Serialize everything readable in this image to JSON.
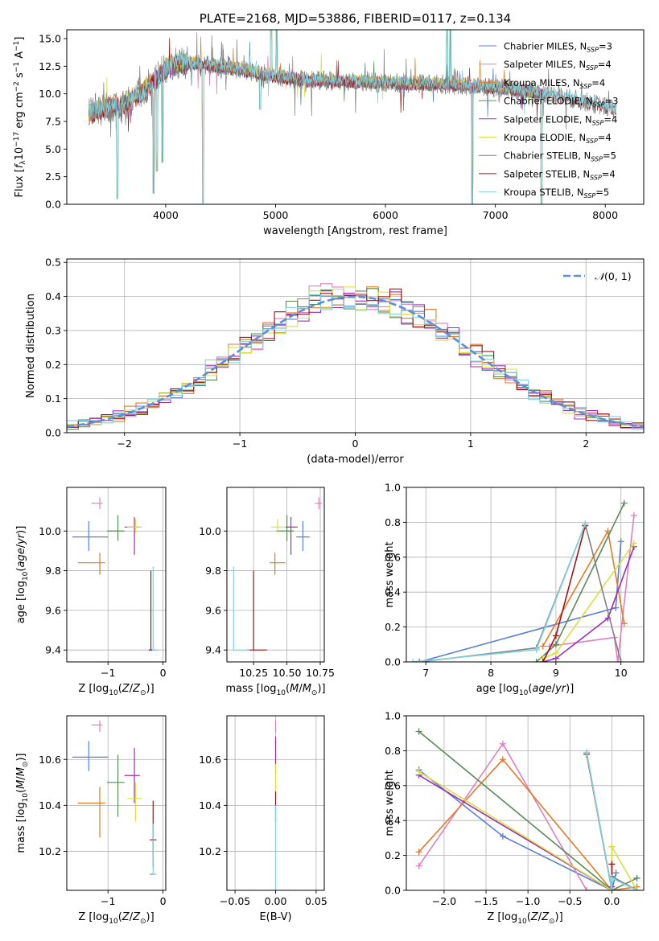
{
  "colors": {
    "chabrier_miles": "#5b7fd6",
    "salpeter_miles": "#e07fbf",
    "kroupa_miles": "#e07b29",
    "chabrier_elodie": "#5a8a5a",
    "salpeter_elodie": "#9b2fb0",
    "kroupa_elodie": "#d8e040",
    "chabrier_stelib": "#808080",
    "salpeter_stelib": "#a01515",
    "kroupa_stelib": "#7fd3dd",
    "normal": "#5b8fd6"
  },
  "chart_data": [
    {
      "id": "spectrum",
      "type": "line",
      "title": "PLATE=2168, MJD=53886, FIBERID=0117, z=0.134",
      "xlabel": "wavelength [Angstrom, rest frame]",
      "ylabel": "Flux [fλ10⁻¹⁷ erg cm⁻² s⁻¹ A⁻¹]",
      "xlim": [
        3100,
        8350
      ],
      "ylim": [
        0,
        15.8
      ],
      "xticks": [
        4000,
        5000,
        6000,
        7000,
        8000
      ],
      "yticks": [
        0.0,
        2.5,
        5.0,
        7.5,
        10.0,
        12.5,
        15.0
      ],
      "grid": false,
      "legend_position": "right",
      "series": [
        {
          "name": "Chabrier MILES, N_SSP=3",
          "key": "chabrier_miles"
        },
        {
          "name": "Salpeter MILES, N_SSP=4",
          "key": "salpeter_miles"
        },
        {
          "name": "Kroupa MILES, N_SSP=4",
          "key": "kroupa_miles"
        },
        {
          "name": "Chabrier ELODIE, N_SSP=3",
          "key": "chabrier_elodie"
        },
        {
          "name": "Salpeter ELODIE, N_SSP=4",
          "key": "salpeter_elodie"
        },
        {
          "name": "Kroupa ELODIE, N_SSP=4",
          "key": "kroupa_elodie"
        },
        {
          "name": "Chabrier STELIB, N_SSP=5",
          "key": "chabrier_stelib"
        },
        {
          "name": "Salpeter STELIB, N_SSP=4",
          "key": "salpeter_stelib"
        },
        {
          "name": "Kroupa STELIB, N_SSP=5",
          "key": "kroupa_stelib"
        }
      ],
      "legend_labels": [
        [
          "Chabrier MILES, N",
          "SSP",
          "=3"
        ],
        [
          "Salpeter MILES, N",
          "SSP",
          "=4"
        ],
        [
          "Kroupa MILES, N",
          "SSP",
          "=4"
        ],
        [
          "Chabrier ELODIE, N",
          "SSP",
          "=3"
        ],
        [
          "Salpeter ELODIE, N",
          "SSP",
          "=4"
        ],
        [
          "Kroupa ELODIE, N",
          "SSP",
          "=4"
        ],
        [
          "Chabrier STELIB, N",
          "SSP",
          "=5"
        ],
        [
          "Salpeter STELIB, N",
          "SSP",
          "=4"
        ],
        [
          "Kroupa STELIB, N",
          "SSP",
          "=5"
        ]
      ],
      "continuum": [
        [
          3300,
          8.2
        ],
        [
          3400,
          8.6
        ],
        [
          3500,
          8.9
        ],
        [
          3600,
          9.0
        ],
        [
          3700,
          9.6
        ],
        [
          3800,
          10.3
        ],
        [
          3900,
          11.2
        ],
        [
          4000,
          12.3
        ],
        [
          4100,
          12.7
        ],
        [
          4200,
          12.8
        ],
        [
          4400,
          12.6
        ],
        [
          4600,
          12.3
        ],
        [
          4800,
          12.0
        ],
        [
          5000,
          11.6
        ],
        [
          5300,
          11.2
        ],
        [
          5600,
          11.2
        ],
        [
          6000,
          11.0
        ],
        [
          6500,
          10.9
        ],
        [
          7000,
          10.6
        ],
        [
          7500,
          10.0
        ],
        [
          7900,
          9.1
        ],
        [
          8100,
          8.6
        ]
      ],
      "absorption_features": [
        [
          3560,
          0.5
        ],
        [
          3890,
          1.0
        ],
        [
          3920,
          3.0
        ],
        [
          3970,
          3.8
        ],
        [
          4340,
          0.1
        ],
        [
          4860,
          8.6
        ],
        [
          6790,
          0.0
        ],
        [
          7420,
          0.0
        ]
      ],
      "emission_features": [
        [
          4960,
          15.8
        ],
        [
          5010,
          15.8
        ],
        [
          6560,
          15.8
        ],
        [
          6590,
          15.8
        ]
      ]
    },
    {
      "id": "residuals",
      "type": "histogram",
      "xlabel": "(data-model)/error",
      "ylabel": "Normed distribution",
      "xlim": [
        -2.5,
        2.5
      ],
      "ylim": [
        0,
        0.51
      ],
      "xticks": [
        -2,
        -1,
        0,
        1,
        2
      ],
      "xtick_labels": [
        "−2",
        "−1",
        "0",
        "1",
        "2"
      ],
      "yticks": [
        0.0,
        0.1,
        0.2,
        0.3,
        0.4,
        0.5
      ],
      "grid": true,
      "legend_position": "top-right",
      "legend": "𝒩(0, 1)",
      "bin_width": 0.1
    },
    {
      "id": "age_vs_Z",
      "type": "errorbar",
      "xlabel": "Z [log₁₀(Z/Z⊙)]",
      "ylabel": "age  [log₁₀(age/yr)]",
      "xlim": [
        -1.75,
        0.05
      ],
      "ylim": [
        9.34,
        10.22
      ],
      "xticks": [
        -1,
        0
      ],
      "xtick_labels": [
        "−1",
        "0"
      ],
      "yticks": [
        9.4,
        9.6,
        9.8,
        10.0
      ],
      "points": [
        {
          "key": "chabrier_miles",
          "x": -1.35,
          "xerr": [
            0.3,
            0.35
          ],
          "y": 9.97,
          "yerr": [
            0.07,
            0.08
          ]
        },
        {
          "key": "salpeter_miles",
          "x": -1.15,
          "xerr": [
            0.15,
            0.05
          ],
          "y": 10.14,
          "yerr": [
            0.03,
            0.03
          ]
        },
        {
          "key": "kroupa_miles",
          "x": -1.15,
          "xerr": [
            0.4,
            0.1
          ],
          "y": 9.84,
          "yerr": [
            0.06,
            0.05
          ]
        },
        {
          "key": "chabrier_elodie",
          "x": -0.82,
          "xerr": [
            0.2,
            0.12
          ],
          "y": 10.0,
          "yerr": [
            0.05,
            0.08
          ]
        },
        {
          "key": "salpeter_elodie",
          "x": -0.52,
          "xerr": [
            0.18,
            0.1
          ],
          "y": 10.02,
          "yerr": [
            0.14,
            0.05
          ]
        },
        {
          "key": "kroupa_elodie",
          "x": -0.5,
          "xerr": [
            0.15,
            0.12
          ],
          "y": 10.02,
          "yerr": [
            0.03,
            0.04
          ]
        },
        {
          "key": "chabrier_stelib",
          "x": -0.18,
          "xerr": [
            0.06,
            0.06
          ],
          "y": 9.4,
          "yerr": [
            0.0,
            0.0
          ]
        },
        {
          "key": "salpeter_stelib",
          "x": -0.22,
          "xerr": [
            0.04,
            0.04
          ],
          "y": 9.4,
          "yerr": [
            0.0,
            0.4
          ]
        },
        {
          "key": "kroupa_stelib",
          "x": -0.18,
          "xerr": [
            0.02,
            0.1
          ],
          "y": 9.4,
          "yerr": [
            0.0,
            0.42
          ]
        }
      ]
    },
    {
      "id": "age_vs_mass",
      "type": "errorbar",
      "xlabel": "mass [log₁₀(M/M⊙)]",
      "ylabel": "",
      "xlim": [
        10.05,
        10.78
      ],
      "ylim": [
        9.34,
        10.22
      ],
      "xticks": [
        10.25,
        10.5,
        10.75
      ],
      "xtick_labels": [
        "10.25",
        "10.50",
        "10.75"
      ],
      "yticks": [
        9.4,
        9.6,
        9.8,
        10.0
      ],
      "points": [
        {
          "key": "chabrier_miles",
          "x": 10.62,
          "xerr": [
            0.05,
            0.05
          ],
          "y": 9.97,
          "yerr": [
            0.07,
            0.08
          ]
        },
        {
          "key": "salpeter_miles",
          "x": 10.74,
          "xerr": [
            0.03,
            0.02
          ],
          "y": 10.14,
          "yerr": [
            0.03,
            0.03
          ]
        },
        {
          "key": "kroupa_miles",
          "x": 10.41,
          "xerr": [
            0.04,
            0.08
          ],
          "y": 9.84,
          "yerr": [
            0.06,
            0.05
          ]
        },
        {
          "key": "chabrier_elodie",
          "x": 10.5,
          "xerr": [
            0.08,
            0.05
          ],
          "y": 10.0,
          "yerr": [
            0.05,
            0.08
          ]
        },
        {
          "key": "salpeter_elodie",
          "x": 10.53,
          "xerr": [
            0.04,
            0.05
          ],
          "y": 10.02,
          "yerr": [
            0.14,
            0.05
          ]
        },
        {
          "key": "kroupa_elodie",
          "x": 10.43,
          "xerr": [
            0.05,
            0.06
          ],
          "y": 10.02,
          "yerr": [
            0.03,
            0.04
          ]
        },
        {
          "key": "chabrier_stelib",
          "x": 10.1,
          "xerr": [
            0.0,
            0.0
          ],
          "y": 9.4,
          "yerr": [
            0.0,
            0.0
          ]
        },
        {
          "key": "salpeter_stelib",
          "x": 10.25,
          "xerr": [
            0.05,
            0.1
          ],
          "y": 9.4,
          "yerr": [
            0.0,
            0.4
          ]
        },
        {
          "key": "kroupa_stelib",
          "x": 10.1,
          "xerr": [
            0.0,
            0.12
          ],
          "y": 9.4,
          "yerr": [
            0.0,
            0.42
          ]
        }
      ]
    },
    {
      "id": "massweight_vs_age",
      "type": "line",
      "xlabel": "age  [log₁₀(age/yr)]",
      "ylabel": "mass weight",
      "xlim": [
        6.7,
        10.35
      ],
      "ylim": [
        0,
        1.0
      ],
      "xticks": [
        7,
        8,
        9,
        10
      ],
      "yticks": [
        0.0,
        0.2,
        0.4,
        0.6,
        0.8,
        1.0
      ],
      "series": [
        {
          "key": "chabrier_miles",
          "x": [
            6.9,
            9.92,
            10.0
          ],
          "y": [
            0.0,
            0.31,
            0.69
          ]
        },
        {
          "key": "salpeter_miles",
          "x": [
            8.9,
            9.9,
            9.95,
            10.2
          ],
          "y": [
            0.09,
            0.14,
            0.0,
            0.84
          ]
        },
        {
          "key": "kroupa_miles",
          "x": [
            8.8,
            9.8,
            10.05
          ],
          "y": [
            0.09,
            0.75,
            0.22
          ]
        },
        {
          "key": "chabrier_elodie",
          "x": [
            8.7,
            9.0,
            10.05
          ],
          "y": [
            0.0,
            0.1,
            0.91
          ]
        },
        {
          "key": "salpeter_elodie",
          "x": [
            8.8,
            9.0,
            9.8,
            10.2
          ],
          "y": [
            0.0,
            0.02,
            0.25,
            0.66
          ]
        },
        {
          "key": "kroupa_elodie",
          "x": [
            8.8,
            9.0,
            10.2
          ],
          "y": [
            0.02,
            0.05,
            0.68
          ]
        },
        {
          "key": "chabrier_stelib",
          "x": [
            6.9,
            8.7,
            9.45,
            10.0
          ],
          "y": [
            0.0,
            0.08,
            0.79,
            0.0
          ]
        },
        {
          "key": "salpeter_stelib",
          "x": [
            8.8,
            9.0,
            9.45
          ],
          "y": [
            0.0,
            0.15,
            0.78
          ]
        },
        {
          "key": "kroupa_stelib",
          "x": [
            6.8,
            8.7,
            9.45
          ],
          "y": [
            0.0,
            0.07,
            0.79
          ]
        }
      ]
    },
    {
      "id": "mass_vs_Z",
      "type": "errorbar",
      "xlabel": "Z [log₁₀(Z/Z⊙)]",
      "ylabel": "mass [log₁₀(M/M⊙)]",
      "xlim": [
        -1.75,
        0.05
      ],
      "ylim": [
        10.03,
        10.79
      ],
      "xticks": [
        -1,
        0
      ],
      "xtick_labels": [
        "−1",
        "0"
      ],
      "yticks": [
        10.2,
        10.4,
        10.6
      ],
      "points": [
        {
          "key": "chabrier_miles",
          "x": -1.35,
          "xerr": [
            0.3,
            0.35
          ],
          "y": 10.61,
          "yerr": [
            0.06,
            0.07
          ]
        },
        {
          "key": "salpeter_miles",
          "x": -1.15,
          "xerr": [
            0.15,
            0.05
          ],
          "y": 10.75,
          "yerr": [
            0.03,
            0.02
          ]
        },
        {
          "key": "kroupa_miles",
          "x": -1.15,
          "xerr": [
            0.4,
            0.1
          ],
          "y": 10.41,
          "yerr": [
            0.15,
            0.07
          ]
        },
        {
          "key": "chabrier_elodie",
          "x": -0.82,
          "xerr": [
            0.2,
            0.12
          ],
          "y": 10.5,
          "yerr": [
            0.15,
            0.12
          ]
        },
        {
          "key": "salpeter_elodie",
          "x": -0.52,
          "xerr": [
            0.18,
            0.1
          ],
          "y": 10.53,
          "yerr": [
            0.12,
            0.12
          ]
        },
        {
          "key": "kroupa_elodie",
          "x": -0.5,
          "xerr": [
            0.15,
            0.12
          ],
          "y": 10.43,
          "yerr": [
            0.1,
            0.07
          ]
        },
        {
          "key": "chabrier_stelib",
          "x": -0.18,
          "xerr": [
            0.06,
            0.06
          ],
          "y": 10.1,
          "yerr": [
            0.0,
            0.0
          ]
        },
        {
          "key": "salpeter_stelib",
          "x": -0.18,
          "xerr": [
            0.06,
            0.06
          ],
          "y": 10.25,
          "yerr": [
            0.12,
            0.17
          ]
        },
        {
          "key": "kroupa_stelib",
          "x": -0.18,
          "xerr": [
            0.0,
            0.06
          ],
          "y": 10.1,
          "yerr": [
            0.0,
            0.22
          ]
        }
      ]
    },
    {
      "id": "mass_vs_ebv",
      "type": "errorbar",
      "xlabel": "E(B-V)",
      "ylabel": "",
      "xlim": [
        -0.06,
        0.06
      ],
      "ylim": [
        10.03,
        10.79
      ],
      "xticks": [
        -0.05,
        0.0,
        0.05
      ],
      "xtick_labels": [
        "−0.05",
        "0.00",
        "0.05"
      ],
      "yticks": [
        10.2,
        10.4,
        10.6
      ],
      "points": [
        {
          "key": "salpeter_miles",
          "x": 0.0,
          "xerr": [
            0,
            0
          ],
          "y": 10.75,
          "yerr": [
            0.03,
            0.02
          ]
        },
        {
          "key": "salpeter_elodie",
          "x": 0.0,
          "xerr": [
            0,
            0
          ],
          "y": 10.6,
          "yerr": [
            0.06,
            0.1
          ]
        },
        {
          "key": "kroupa_elodie",
          "x": 0.0,
          "xerr": [
            0,
            0
          ],
          "y": 10.5,
          "yerr": [
            0.06,
            0.08
          ]
        },
        {
          "key": "salpeter_stelib",
          "x": 0.0,
          "xerr": [
            0,
            0
          ],
          "y": 10.4,
          "yerr": [
            0.07,
            0.06
          ]
        },
        {
          "key": "kroupa_stelib",
          "x": 0.0,
          "xerr": [
            0,
            0
          ],
          "y": 10.2,
          "yerr": [
            0.17,
            0.2
          ]
        }
      ]
    },
    {
      "id": "massweight_vs_Z",
      "type": "line",
      "xlabel": "Z [log₁₀(Z/Z⊙)]",
      "ylabel": "mass weight",
      "xlim": [
        -2.45,
        0.38
      ],
      "ylim": [
        0,
        1.0
      ],
      "xticks": [
        -2.0,
        -1.5,
        -1.0,
        -0.5,
        0.0
      ],
      "xtick_labels": [
        "−2.0",
        "−1.5",
        "−1.0",
        "−0.5",
        "0.0"
      ],
      "yticks": [
        0.0,
        0.2,
        0.4,
        0.6,
        0.8,
        1.0
      ],
      "series": [
        {
          "key": "chabrier_miles",
          "x": [
            -2.3,
            -1.3,
            0.0,
            0.05
          ],
          "y": [
            0.69,
            0.31,
            0.0,
            0.1
          ]
        },
        {
          "key": "salpeter_miles",
          "x": [
            -2.3,
            -1.3,
            -0.3,
            0.0,
            0.0
          ],
          "y": [
            0.14,
            0.84,
            0.0,
            0.0,
            0.25
          ]
        },
        {
          "key": "kroupa_miles",
          "x": [
            -2.3,
            -1.3,
            0.0,
            0.3
          ],
          "y": [
            0.22,
            0.75,
            0.0,
            0.02
          ]
        },
        {
          "key": "chabrier_elodie",
          "x": [
            -2.3,
            0.0,
            0.3
          ],
          "y": [
            0.91,
            0.0,
            0.07
          ]
        },
        {
          "key": "salpeter_elodie",
          "x": [
            -2.3,
            0.0,
            0.0
          ],
          "y": [
            0.66,
            0.0,
            0.02
          ]
        },
        {
          "key": "kroupa_elodie",
          "x": [
            -2.3,
            0.0,
            0.0,
            0.3
          ],
          "y": [
            0.68,
            0.0,
            0.25,
            0.0
          ]
        },
        {
          "key": "chabrier_stelib",
          "x": [
            -0.3,
            0.0,
            0.0,
            0.3
          ],
          "y": [
            0.79,
            0.0,
            0.08,
            0.0
          ]
        },
        {
          "key": "salpeter_stelib",
          "x": [
            -0.3,
            0.0,
            0.0
          ],
          "y": [
            0.78,
            0.0,
            0.15
          ]
        },
        {
          "key": "kroupa_stelib",
          "x": [
            -0.3,
            0.0,
            0.0,
            0.3
          ],
          "y": [
            0.79,
            0.0,
            0.07,
            0.0
          ]
        }
      ]
    }
  ]
}
